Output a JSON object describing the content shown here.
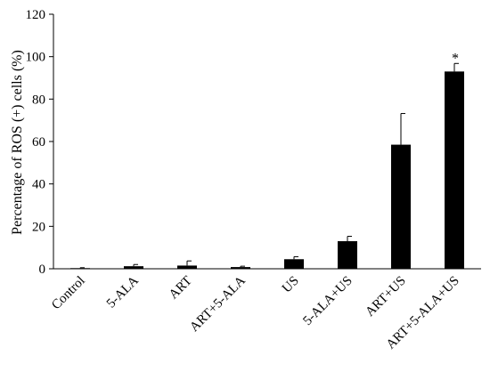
{
  "chart_data": {
    "type": "bar",
    "title": "",
    "xlabel": "",
    "ylabel": "Percentage of ROS (+) cells (%)",
    "ylim": [
      0,
      120
    ],
    "yticks": [
      0,
      20,
      40,
      60,
      80,
      100,
      120
    ],
    "grid": false,
    "categories": [
      "Control",
      "5-ALA",
      "ART",
      "ART+5-ALA",
      "US",
      "5-ALA+US",
      "ART+US",
      "ART+5-ALA+US"
    ],
    "values": [
      0.3,
      1.2,
      1.5,
      0.8,
      4.5,
      13.0,
      58.5,
      93.0
    ],
    "error_bars": [
      0.2,
      0.8,
      2.2,
      0.4,
      1.2,
      2.3,
      14.7,
      3.8
    ],
    "annotations": [
      {
        "category": "ART+5-ALA+US",
        "text": "*"
      }
    ],
    "bar_color": "#000000"
  }
}
